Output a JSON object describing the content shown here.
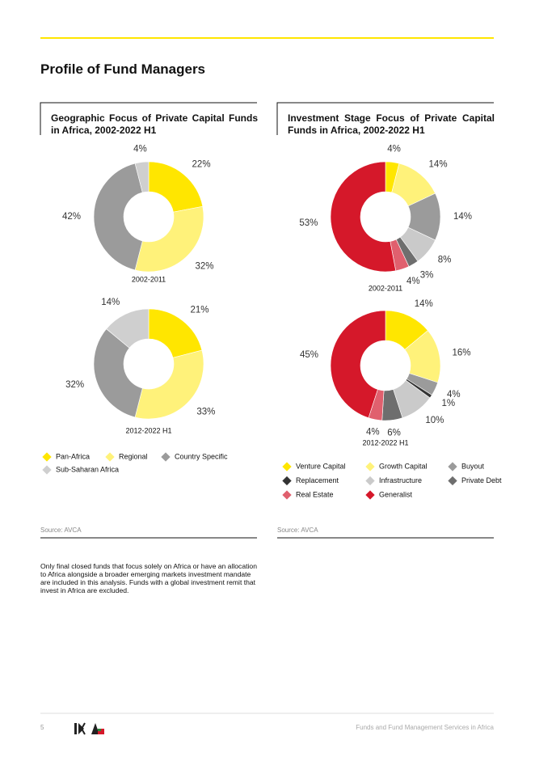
{
  "page": {
    "title": "Profile of Fund Managers",
    "footnote": "Only final closed funds that focus solely on Africa or have an allocation to Africa alongside a broader emerging markets investment mandate are included in this analysis. Funds with a global investment remit that invest in Africa are excluded.",
    "page_number": "5",
    "footer_text": "Funds and Fund Management Services in Africa"
  },
  "panels": [
    {
      "title": "Geographic Focus of Private Capital Funds in Africa, 2002-2022 H1",
      "source": "Source: AVCA"
    },
    {
      "title": "Investment Stage Focus of Private Capital Funds in Africa, 2002-2022 H1",
      "source": "Source: AVCA"
    }
  ],
  "chart_data": [
    {
      "type": "pie",
      "title": "2002-2011",
      "categories": [
        "Pan-Africa",
        "Regional",
        "Country Specific",
        "Sub-Saharan Africa"
      ],
      "values": [
        22,
        32,
        42,
        4
      ],
      "value_labels": [
        "22%",
        "32%",
        "42%",
        "4%"
      ],
      "colors": [
        "#ffe600",
        "#fff27a",
        "#9b9b9b",
        "#cfcfcf"
      ]
    },
    {
      "type": "pie",
      "title": "2012-2022 H1",
      "categories": [
        "Pan-Africa",
        "Regional",
        "Country Specific",
        "Sub-Saharan Africa"
      ],
      "values": [
        21,
        33,
        32,
        14
      ],
      "value_labels": [
        "21%",
        "33%",
        "32%",
        "14%"
      ],
      "colors": [
        "#ffe600",
        "#fff27a",
        "#9b9b9b",
        "#cfcfcf"
      ]
    },
    {
      "type": "pie",
      "title": "2002-2011",
      "categories": [
        "Venture Capital",
        "Growth Capital",
        "Buyout",
        "Infrastructure",
        "Private Debt",
        "Real Estate",
        "Generalist"
      ],
      "values": [
        4,
        14,
        14,
        8,
        3,
        4,
        53
      ],
      "value_labels": [
        "4%",
        "14%",
        "14%",
        "8%",
        "3%",
        "4%",
        "53%"
      ],
      "colors": [
        "#ffe600",
        "#fff27a",
        "#9b9b9b",
        "#cacaca",
        "#6e6e6e",
        "#e0606e",
        "#d5182a"
      ]
    },
    {
      "type": "pie",
      "title": "2012-2022 H1",
      "categories": [
        "Venture Capital",
        "Growth Capital",
        "Buyout",
        "Replacement",
        "Infrastructure",
        "Private Debt",
        "Real Estate",
        "Generalist"
      ],
      "values": [
        14,
        16,
        4,
        1,
        10,
        6,
        4,
        45
      ],
      "value_labels": [
        "14%",
        "16%",
        "4%",
        "1%",
        "10%",
        "6%",
        "4%",
        "45%"
      ],
      "colors": [
        "#ffe600",
        "#fff27a",
        "#9b9b9b",
        "#333333",
        "#cacaca",
        "#6e6e6e",
        "#e0606e",
        "#d5182a"
      ]
    }
  ]
}
